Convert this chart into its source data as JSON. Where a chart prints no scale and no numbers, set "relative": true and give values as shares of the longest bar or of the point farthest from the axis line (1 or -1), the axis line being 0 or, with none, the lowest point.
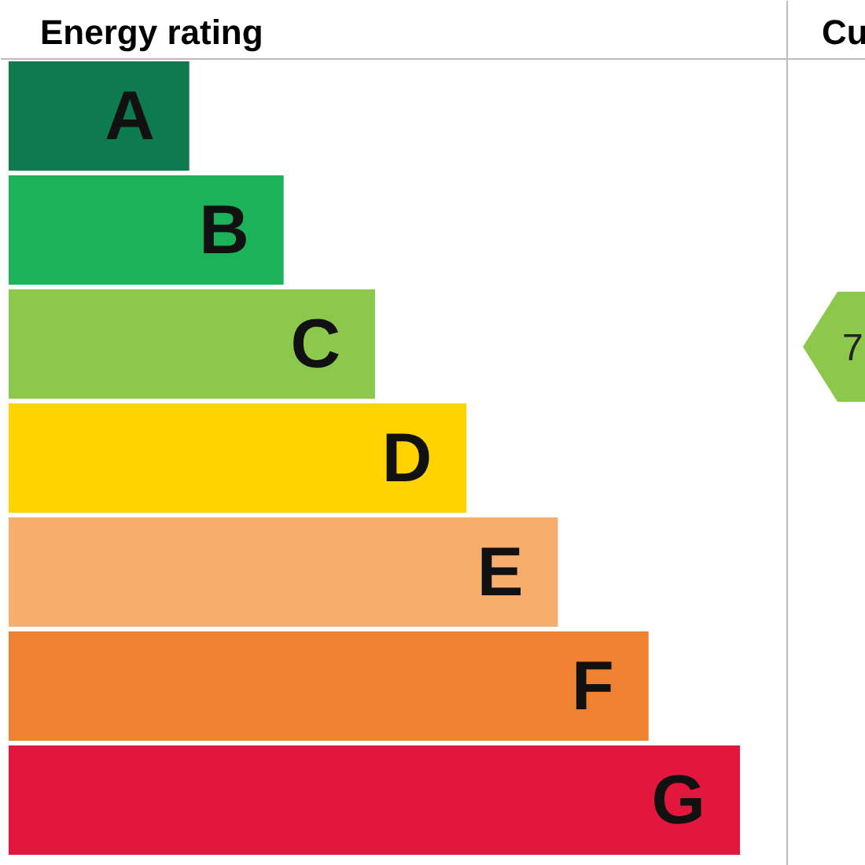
{
  "chart_data": {
    "type": "bar",
    "orientation": "horizontal",
    "relative": true,
    "title": "Energy rating",
    "tick_labels": false,
    "grid": false,
    "categories": [
      "A",
      "B",
      "C",
      "D",
      "E",
      "F",
      "G"
    ],
    "values": [
      0.247,
      0.376,
      0.501,
      0.626,
      0.751,
      0.875,
      1
    ],
    "colors": [
      "#0d7a50",
      "#1cb25a",
      "#8cc84b",
      "#ffd300",
      "#f7ad6c",
      "#ee8230",
      "#e3163d"
    ],
    "annotations": [
      "Cu",
      "7"
    ]
  }
}
